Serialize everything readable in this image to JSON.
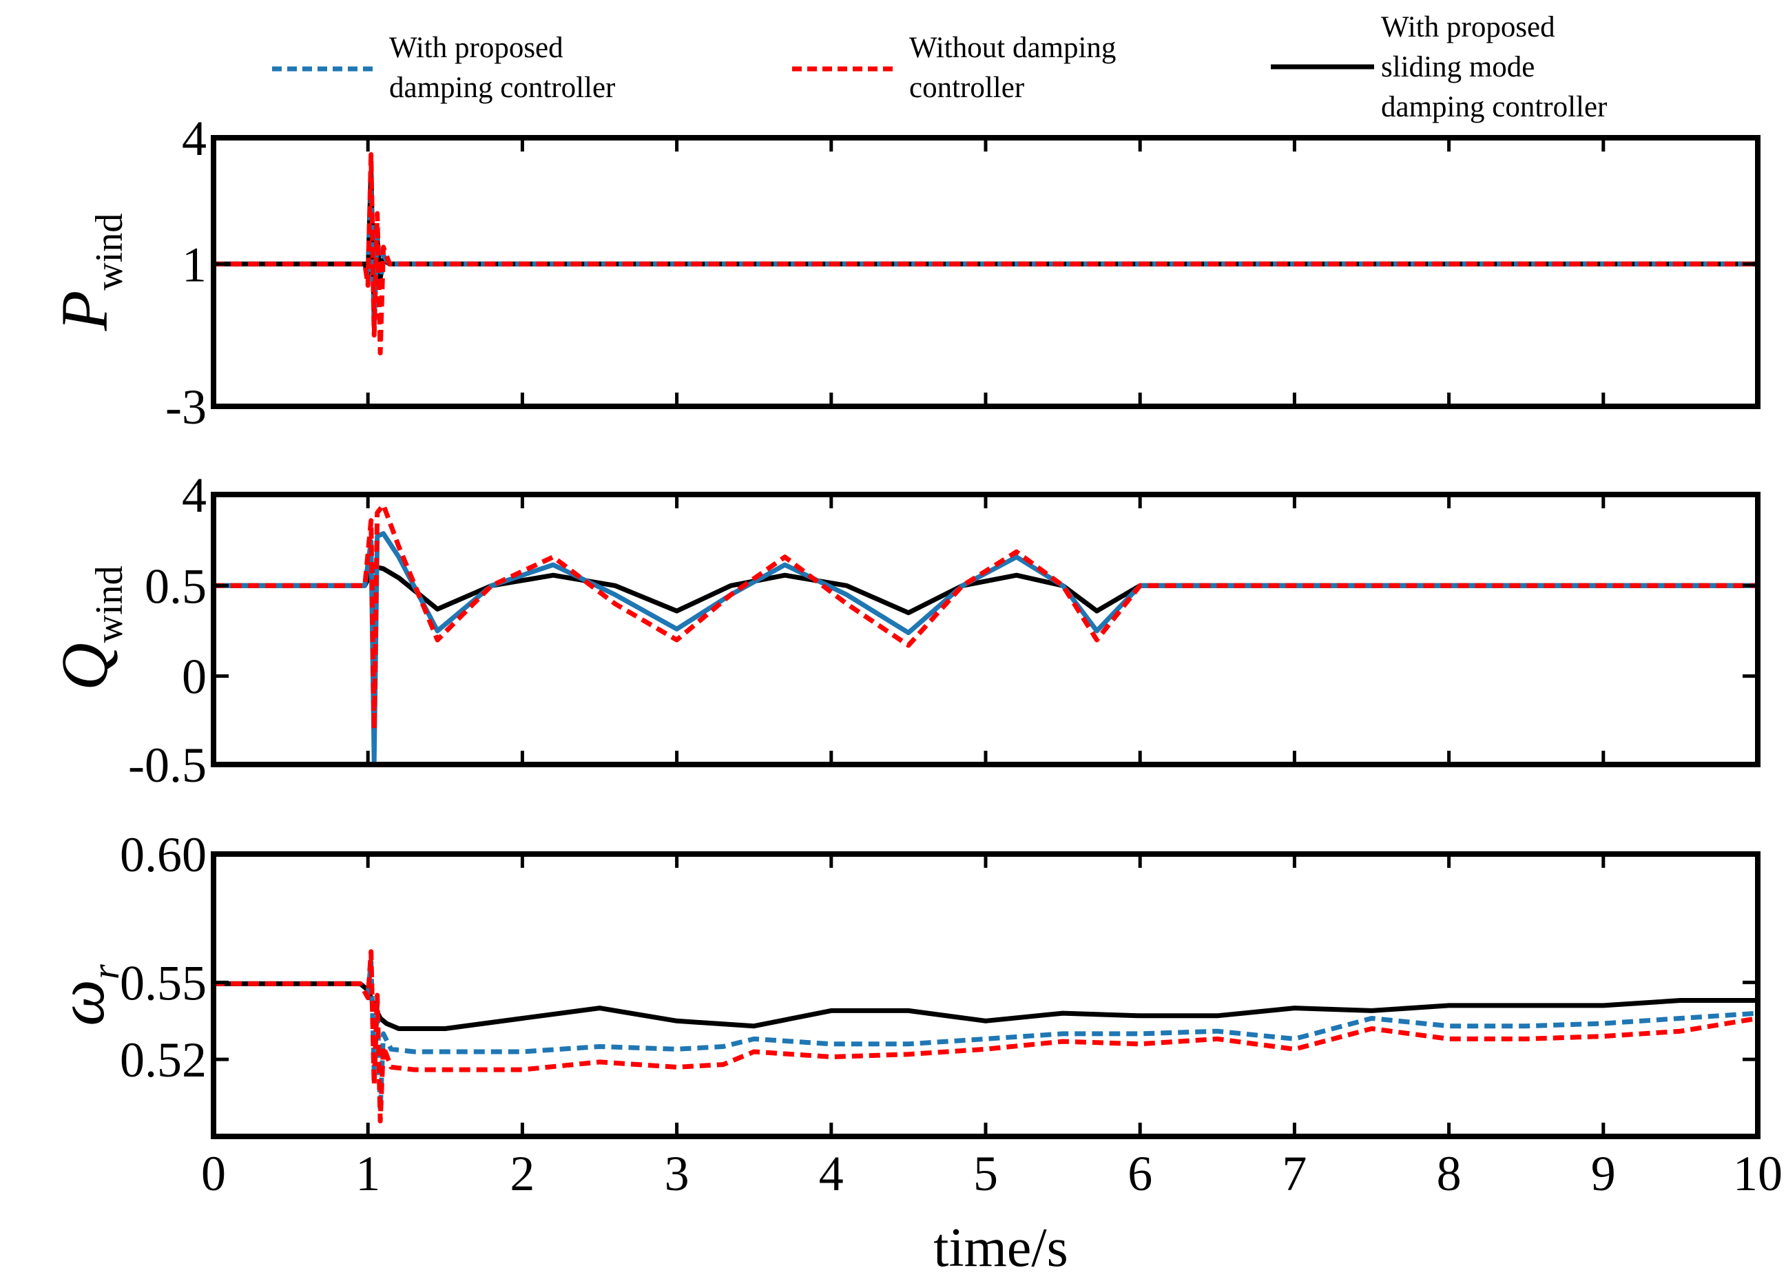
{
  "chart_data": [
    {
      "type": "line",
      "panel": "top",
      "ylabel_main": "P",
      "ylabel_sub": "wind",
      "x_range": [
        0,
        10
      ],
      "y_ticks": [
        4,
        1,
        -3
      ],
      "y_tick_labels": [
        "4",
        "1",
        "-3"
      ],
      "series": [
        {
          "name": "With proposed damping controller",
          "color": "#1f77b4",
          "style": "dashed",
          "x": [
            0,
            0.98,
            1.0,
            1.02,
            1.04,
            1.06,
            1.08,
            1.1,
            1.14,
            10
          ],
          "y": [
            1,
            1,
            0.6,
            2.8,
            -0.8,
            1.9,
            0.4,
            1.2,
            1,
            1
          ]
        },
        {
          "name": "Without damping controller",
          "color": "#ff0000",
          "style": "dashed",
          "x": [
            0,
            0.98,
            1.0,
            1.02,
            1.04,
            1.06,
            1.08,
            1.1,
            1.14,
            10
          ],
          "y": [
            1,
            1,
            0.4,
            3.6,
            -1.0,
            2.2,
            -1.5,
            1.4,
            1,
            1
          ]
        },
        {
          "name": "With proposed sliding mode damping controller",
          "color": "#000000",
          "style": "solid",
          "x": [
            0,
            0.98,
            1.0,
            1.02,
            1.04,
            1.06,
            1.08,
            1.1,
            1.14,
            10
          ],
          "y": [
            1,
            1,
            0.7,
            3.2,
            -0.5,
            1.6,
            0.6,
            1.1,
            1,
            1
          ]
        }
      ]
    },
    {
      "type": "line",
      "panel": "middle",
      "ylabel_main": "Q",
      "ylabel_sub": "wind",
      "x_range": [
        0,
        10
      ],
      "y_ticks": [
        4,
        0.5,
        0,
        -0.5
      ],
      "y_tick_labels": [
        "4",
        "0.5",
        "0",
        "-0.5"
      ],
      "series": [
        {
          "name": "With proposed damping controller",
          "color": "#1f77b4",
          "style": "solid",
          "x": [
            0,
            0.98,
            1.02,
            1.04,
            1.06,
            1.1,
            1.2,
            1.45,
            1.8,
            2.2,
            2.6,
            3.0,
            3.35,
            3.7,
            4.1,
            4.5,
            4.85,
            5.2,
            5.5,
            5.72,
            6.0,
            10
          ],
          "y": [
            0.5,
            0.5,
            2.2,
            -0.48,
            2.4,
            2.5,
            1.6,
            0.25,
            0.5,
            1.3,
            0.45,
            0.26,
            0.45,
            1.3,
            0.45,
            0.24,
            0.5,
            1.6,
            0.5,
            0.25,
            0.5,
            0.5
          ]
        },
        {
          "name": "Without damping controller",
          "color": "#ff0000",
          "style": "dashed",
          "x": [
            0,
            0.98,
            1.02,
            1.04,
            1.06,
            1.1,
            1.2,
            1.45,
            1.8,
            2.2,
            2.6,
            3.0,
            3.35,
            3.7,
            4.1,
            4.5,
            4.85,
            5.2,
            5.5,
            5.72,
            6.0,
            10
          ],
          "y": [
            0.5,
            0.5,
            3.0,
            -0.3,
            3.3,
            3.6,
            2.0,
            0.2,
            0.5,
            1.6,
            0.4,
            0.2,
            0.45,
            1.6,
            0.4,
            0.17,
            0.5,
            1.8,
            0.5,
            0.2,
            0.5,
            0.5
          ]
        },
        {
          "name": "With proposed sliding mode damping controller",
          "color": "#000000",
          "style": "solid",
          "x": [
            0,
            0.98,
            1.02,
            1.06,
            1.1,
            1.2,
            1.45,
            1.8,
            2.2,
            2.6,
            3.0,
            3.35,
            3.7,
            4.1,
            4.5,
            4.85,
            5.2,
            5.5,
            5.72,
            6.0,
            10
          ],
          "y": [
            0.5,
            0.5,
            1.0,
            1.2,
            1.15,
            0.8,
            0.37,
            0.5,
            0.9,
            0.5,
            0.36,
            0.5,
            0.9,
            0.5,
            0.35,
            0.5,
            0.9,
            0.5,
            0.36,
            0.5,
            0.5
          ]
        }
      ]
    },
    {
      "type": "line",
      "panel": "bottom",
      "ylabel_main": "ω",
      "ylabel_sub": "r",
      "x_range": [
        0,
        10
      ],
      "y_range": [
        0.49,
        0.6
      ],
      "y_ticks": [
        0.6,
        0.55,
        0.52
      ],
      "y_tick_labels": [
        "0.60",
        "0.55",
        "0.52"
      ],
      "series": [
        {
          "name": "With proposed damping controller",
          "color": "#1f77b4",
          "style": "dashed",
          "x": [
            0,
            0.95,
            1.0,
            1.02,
            1.04,
            1.06,
            1.08,
            1.1,
            1.15,
            1.3,
            2.0,
            2.5,
            3.0,
            3.3,
            3.5,
            4.0,
            4.5,
            5.0,
            5.5,
            6.0,
            6.5,
            7.0,
            7.5,
            8.0,
            8.5,
            9.0,
            9.5,
            10
          ],
          "y": [
            0.5495,
            0.5495,
            0.546,
            0.558,
            0.515,
            0.542,
            0.5,
            0.53,
            0.524,
            0.523,
            0.523,
            0.525,
            0.524,
            0.525,
            0.528,
            0.526,
            0.526,
            0.528,
            0.53,
            0.53,
            0.531,
            0.528,
            0.536,
            0.533,
            0.533,
            0.534,
            0.536,
            0.538
          ]
        },
        {
          "name": "Without damping controller",
          "color": "#ff0000",
          "style": "dashed",
          "x": [
            0,
            0.95,
            1.0,
            1.02,
            1.04,
            1.06,
            1.08,
            1.1,
            1.15,
            1.3,
            2.0,
            2.5,
            3.0,
            3.3,
            3.5,
            4.0,
            4.5,
            5.0,
            5.5,
            6.0,
            6.5,
            7.0,
            7.5,
            8.0,
            8.5,
            9.0,
            9.5,
            10
          ],
          "y": [
            0.5495,
            0.5495,
            0.544,
            0.562,
            0.51,
            0.545,
            0.496,
            0.525,
            0.517,
            0.516,
            0.516,
            0.519,
            0.517,
            0.518,
            0.523,
            0.521,
            0.522,
            0.524,
            0.527,
            0.526,
            0.528,
            0.524,
            0.532,
            0.528,
            0.528,
            0.529,
            0.531,
            0.536
          ]
        },
        {
          "name": "With proposed sliding mode damping controller",
          "color": "#000000",
          "style": "solid",
          "x": [
            0,
            0.95,
            1.0,
            1.04,
            1.08,
            1.12,
            1.2,
            1.5,
            2.0,
            2.5,
            3.0,
            3.5,
            4.0,
            4.5,
            5.0,
            5.5,
            6.0,
            6.5,
            7.0,
            7.5,
            8.0,
            8.5,
            9.0,
            9.5,
            10
          ],
          "y": [
            0.5495,
            0.5495,
            0.547,
            0.541,
            0.536,
            0.534,
            0.532,
            0.532,
            0.536,
            0.54,
            0.535,
            0.533,
            0.539,
            0.539,
            0.535,
            0.538,
            0.537,
            0.537,
            0.54,
            0.539,
            0.541,
            0.541,
            0.541,
            0.543,
            0.543
          ]
        }
      ]
    }
  ],
  "x_axis": {
    "label": "time/s",
    "ticks": [
      0,
      1,
      2,
      3,
      4,
      5,
      6,
      7,
      8,
      9,
      10
    ],
    "tick_labels": [
      "0",
      "1",
      "2",
      "3",
      "4",
      "5",
      "6",
      "7",
      "8",
      "9",
      "10"
    ]
  },
  "legend": {
    "placement": "top",
    "entries": [
      {
        "lines": [
          "With proposed",
          "damping controller"
        ],
        "color": "#1f77b4",
        "style": "dashed"
      },
      {
        "lines": [
          "Without damping",
          "controller"
        ],
        "color": "#ff0000",
        "style": "dashed"
      },
      {
        "lines": [
          "With proposed",
          "sliding mode",
          "damping controller"
        ],
        "color": "#000000",
        "style": "solid"
      }
    ]
  }
}
